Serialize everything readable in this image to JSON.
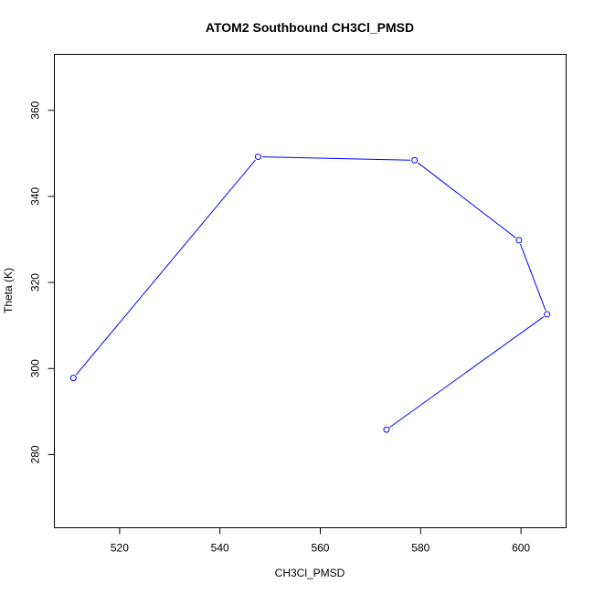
{
  "chart_data": {
    "type": "line",
    "title": "ATOM2 Southbound CH3Cl_PMSD",
    "xlabel": "CH3Cl_PMSD",
    "ylabel": "Theta (K)",
    "xlim": [
      507,
      609
    ],
    "ylim": [
      263,
      373
    ],
    "x_ticks": [
      520,
      540,
      560,
      580,
      600
    ],
    "y_ticks": [
      280,
      300,
      320,
      340,
      360
    ],
    "grid": false,
    "legend": "none",
    "series": [
      {
        "color": "#0000ff",
        "marker": "open-circle",
        "points": [
          {
            "x": 510.8,
            "y": 297.8
          },
          {
            "x": 547.6,
            "y": 349.2
          },
          {
            "x": 578.8,
            "y": 348.4
          },
          {
            "x": 599.6,
            "y": 329.8
          },
          {
            "x": 605.2,
            "y": 312.6
          },
          {
            "x": 573.2,
            "y": 285.8
          }
        ]
      }
    ]
  }
}
